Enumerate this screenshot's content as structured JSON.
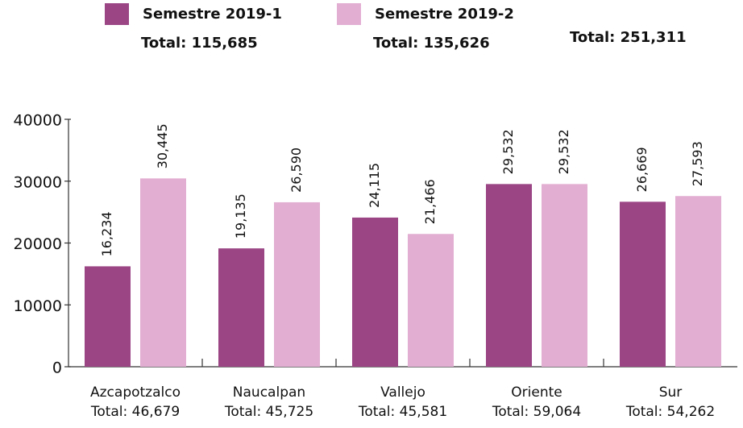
{
  "chart_data": {
    "type": "bar",
    "categories": [
      "Azcapotzalco",
      "Naucalpan",
      "Vallejo",
      "Oriente",
      "Sur"
    ],
    "category_totals": [
      "Total: 46,679",
      "Total: 45,725",
      "Total: 45,581",
      "Total: 59,064",
      "Total: 54,262"
    ],
    "series": [
      {
        "name": "Semestre 2019-1",
        "total_label": "Total: 115,685",
        "color": "#9b4585",
        "values": [
          16234,
          19135,
          24115,
          29532,
          26669
        ],
        "value_labels": [
          "16,234",
          "19,135",
          "24,115",
          "29,532",
          "26,669"
        ]
      },
      {
        "name": "Semestre 2019-2",
        "total_label": "Total: 135,626",
        "color": "#e2aed2",
        "values": [
          30445,
          26590,
          21466,
          29532,
          27593
        ],
        "value_labels": [
          "30,445",
          "26,590",
          "21,466",
          "29,532",
          "27,593"
        ]
      }
    ],
    "annotation": "Total: 251,311",
    "ylim": [
      0,
      40000
    ],
    "yticks": [
      0,
      10000,
      20000,
      30000,
      40000
    ],
    "grid": false
  }
}
